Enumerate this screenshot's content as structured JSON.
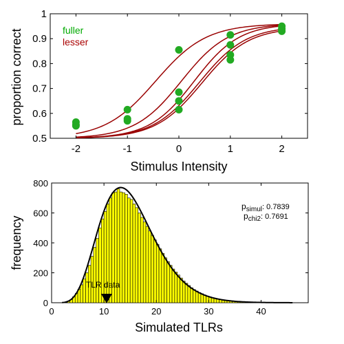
{
  "chart_data": [
    {
      "type": "scatter",
      "title": "",
      "xlabel": "Stimulus Intensity",
      "ylabel": "proportion correct",
      "xlim": [
        -2.5,
        2.5
      ],
      "ylim": [
        0.5,
        1.0
      ],
      "xticks": [
        -2,
        -1,
        0,
        1,
        2
      ],
      "xtick_labels": [
        "-2",
        "-1",
        "0",
        "1",
        "2"
      ],
      "yticks": [
        0.5,
        0.6,
        0.7,
        0.8,
        0.9,
        1.0
      ],
      "ytick_labels": [
        "0.5",
        "0.6",
        "0.7",
        "0.8",
        "0.9",
        "1"
      ],
      "grid": false,
      "legend": {
        "placement": "top-left",
        "entries": [
          {
            "label": "fuller",
            "color": "#00aa00"
          },
          {
            "label": "lesser",
            "color": "#aa0000"
          }
        ]
      },
      "colors": {
        "points": "#22aa22",
        "curves": "#990000"
      },
      "points": [
        {
          "x": -2,
          "y": 0.565
        },
        {
          "x": -2,
          "y": 0.555
        },
        {
          "x": -2,
          "y": 0.55
        },
        {
          "x": -1,
          "y": 0.615
        },
        {
          "x": -1,
          "y": 0.578
        },
        {
          "x": -1,
          "y": 0.57
        },
        {
          "x": 0,
          "y": 0.855
        },
        {
          "x": 0,
          "y": 0.685
        },
        {
          "x": 0,
          "y": 0.65
        },
        {
          "x": 0,
          "y": 0.615
        },
        {
          "x": 1,
          "y": 0.915
        },
        {
          "x": 1,
          "y": 0.875
        },
        {
          "x": 1,
          "y": 0.835
        },
        {
          "x": 1,
          "y": 0.815
        },
        {
          "x": 2,
          "y": 0.95
        },
        {
          "x": 2,
          "y": 0.94
        },
        {
          "x": 2,
          "y": 0.93
        }
      ],
      "curves": [
        {
          "alpha": -0.45,
          "beta": 1.2,
          "guess": 0.5,
          "lapse": 0.04,
          "width": 1.5
        },
        {
          "alpha": 0.05,
          "beta": 1.3,
          "guess": 0.5,
          "lapse": 0.04,
          "width": 1.5
        },
        {
          "alpha": 0.3,
          "beta": 1.35,
          "guess": 0.5,
          "lapse": 0.04,
          "width": 1.5
        },
        {
          "alpha": 0.4,
          "beta": 1.3,
          "guess": 0.5,
          "lapse": 0.05,
          "width": 1.5
        },
        {
          "alpha": 0.45,
          "beta": 1.3,
          "guess": 0.5,
          "lapse": 0.055,
          "width": 1.5
        }
      ]
    },
    {
      "type": "bar",
      "title": "",
      "xlabel": "Simulated TLRs",
      "ylabel": "frequency",
      "xlim": [
        0,
        49
      ],
      "ylim": [
        0,
        800
      ],
      "xticks": [
        0,
        10,
        20,
        30,
        40
      ],
      "xtick_labels": [
        "0",
        "10",
        "20",
        "30",
        "40"
      ],
      "yticks": [
        0,
        200,
        400,
        600,
        800
      ],
      "ytick_labels": [
        "0",
        "200",
        "400",
        "600",
        "800"
      ],
      "grid": false,
      "bin_width": 0.5,
      "bin_start": 3,
      "colors": {
        "bars": "#ffff00",
        "bar_edge": "#000000",
        "curve": "#000000",
        "marker": "#000000"
      },
      "values": [
        12,
        20,
        40,
        62,
        90,
        120,
        160,
        200,
        250,
        310,
        370,
        430,
        500,
        560,
        610,
        660,
        700,
        735,
        740,
        760,
        740,
        735,
        725,
        700,
        690,
        660,
        635,
        600,
        570,
        540,
        510,
        480,
        450,
        420,
        390,
        360,
        330,
        300,
        275,
        250,
        225,
        205,
        185,
        165,
        145,
        130,
        115,
        100,
        88,
        78,
        68,
        60,
        52,
        45,
        39,
        34,
        29,
        25,
        21,
        18,
        15,
        13,
        11,
        9,
        7,
        6,
        5,
        4,
        3,
        3,
        2,
        2,
        1,
        1
      ],
      "fit_curve": {
        "mean": 14.5,
        "sd": 5.0,
        "mode": 13.2,
        "peak": 770
      },
      "annotation": {
        "label": "TLR data",
        "x": 10.5
      },
      "stats": {
        "p_simul_base": "p",
        "p_simul_sub": "simul",
        "p_simul_value": ": 0.7839",
        "p_chi2_base": "p",
        "p_chi2_sub": "chi2",
        "p_chi2_value": ": 0.7691"
      }
    }
  ]
}
